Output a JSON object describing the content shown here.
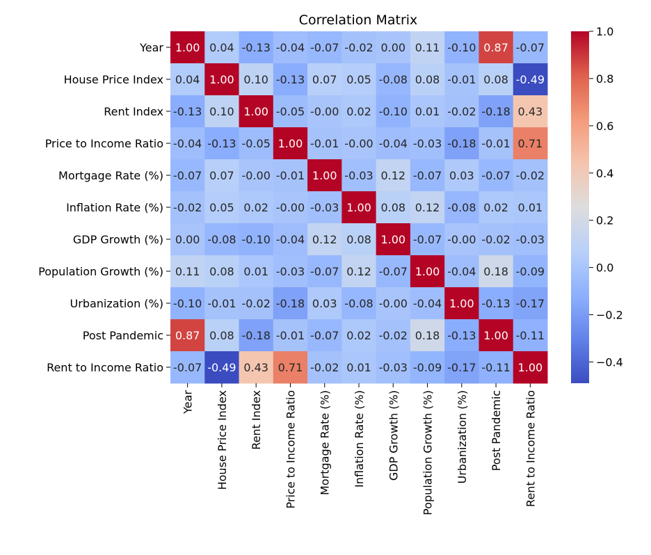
{
  "chart_data": {
    "type": "heatmap",
    "title": "Correlation Matrix",
    "labels": [
      "Year",
      "House Price Index",
      "Rent Index",
      "Price to Income Ratio",
      "Mortgage Rate (%)",
      "Inflation Rate (%)",
      "GDP Growth (%)",
      "Population Growth (%)",
      "Urbanization (%)",
      "Post Pandemic",
      "Rent to Income Ratio"
    ],
    "values": [
      [
        1.0,
        0.04,
        -0.13,
        -0.04,
        -0.07,
        -0.02,
        0.0,
        0.11,
        -0.1,
        0.87,
        -0.07
      ],
      [
        0.04,
        1.0,
        0.1,
        -0.13,
        0.07,
        0.05,
        -0.08,
        0.08,
        -0.01,
        0.08,
        -0.49
      ],
      [
        -0.13,
        0.1,
        1.0,
        -0.05,
        -0.0,
        0.02,
        -0.1,
        0.01,
        -0.02,
        -0.18,
        0.43
      ],
      [
        -0.04,
        -0.13,
        -0.05,
        1.0,
        -0.01,
        -0.0,
        -0.04,
        -0.03,
        -0.18,
        -0.01,
        0.71
      ],
      [
        -0.07,
        0.07,
        -0.0,
        -0.01,
        1.0,
        -0.03,
        0.12,
        -0.07,
        0.03,
        -0.07,
        -0.02
      ],
      [
        -0.02,
        0.05,
        0.02,
        -0.0,
        -0.03,
        1.0,
        0.08,
        0.12,
        -0.08,
        0.02,
        0.01
      ],
      [
        0.0,
        -0.08,
        -0.1,
        -0.04,
        0.12,
        0.08,
        1.0,
        -0.07,
        -0.0,
        -0.02,
        -0.03
      ],
      [
        0.11,
        0.08,
        0.01,
        -0.03,
        -0.07,
        0.12,
        -0.07,
        1.0,
        -0.04,
        0.18,
        -0.09
      ],
      [
        -0.1,
        -0.01,
        -0.02,
        -0.18,
        0.03,
        -0.08,
        -0.0,
        -0.04,
        1.0,
        -0.13,
        -0.17
      ],
      [
        0.87,
        0.08,
        -0.18,
        -0.01,
        -0.07,
        0.02,
        -0.02,
        0.18,
        -0.13,
        1.0,
        -0.11
      ],
      [
        -0.07,
        -0.49,
        0.43,
        0.71,
        -0.02,
        0.01,
        -0.03,
        -0.09,
        -0.17,
        -0.11,
        1.0
      ]
    ],
    "colormap": "coolwarm",
    "colorbar": {
      "range": [
        -0.49,
        1.0
      ],
      "ticks": [
        1.0,
        0.8,
        0.6,
        0.4,
        0.2,
        0.0,
        -0.2,
        -0.4
      ],
      "tick_labels": [
        "1.0",
        "0.8",
        "0.6",
        "0.4",
        "0.2",
        "0.0",
        "−0.2",
        "−0.4"
      ]
    },
    "annotation_format": "0.00"
  }
}
